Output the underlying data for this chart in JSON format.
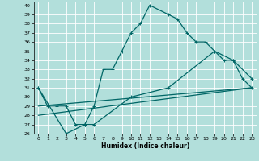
{
  "xlabel": "Humidex (Indice chaleur)",
  "bg_color": "#b2dfdb",
  "grid_color": "#ffffff",
  "line_color": "#006666",
  "xlim": [
    -0.5,
    23.5
  ],
  "ylim": [
    26,
    40.4
  ],
  "xticks": [
    0,
    1,
    2,
    3,
    4,
    5,
    6,
    7,
    8,
    9,
    10,
    11,
    12,
    13,
    14,
    15,
    16,
    17,
    18,
    19,
    20,
    21,
    22,
    23
  ],
  "yticks": [
    26,
    27,
    28,
    29,
    30,
    31,
    32,
    33,
    34,
    35,
    36,
    37,
    38,
    39,
    40
  ],
  "line1_x": [
    0,
    1,
    2,
    3,
    4,
    5,
    6,
    7,
    8,
    9,
    10,
    11,
    12,
    13,
    14,
    15,
    16,
    17,
    18,
    19,
    20,
    21,
    22,
    23
  ],
  "line1_y": [
    31,
    29,
    29,
    29,
    27,
    27,
    29,
    33,
    33,
    35,
    37,
    38,
    40,
    39.5,
    39,
    38.5,
    37,
    36,
    36,
    35,
    34,
    34,
    32,
    31
  ],
  "line2_x": [
    0,
    3,
    5,
    5,
    6,
    10,
    14,
    19,
    21,
    23
  ],
  "line2_y": [
    31,
    26,
    27,
    27,
    27,
    30,
    31,
    35,
    34,
    32
  ],
  "line3_x": [
    0,
    23
  ],
  "line3_y": [
    28,
    31
  ],
  "line4_x": [
    0,
    23
  ],
  "line4_y": [
    29,
    31
  ]
}
